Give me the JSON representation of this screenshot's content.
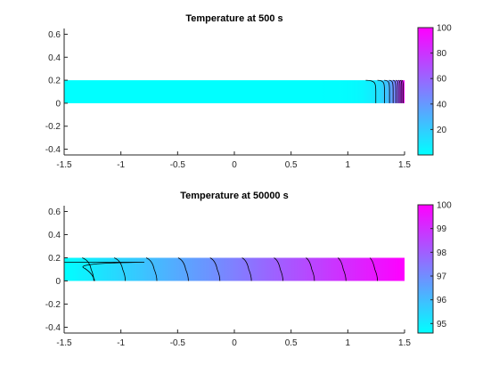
{
  "chart_data": [
    {
      "type": "heatmap",
      "title": "Temperature at 500 s",
      "xlim": [
        -1.5,
        1.5
      ],
      "ylim": [
        -0.45,
        0.65
      ],
      "x_ticks": [
        -1.5,
        -1,
        -0.5,
        0,
        0.5,
        1,
        1.5
      ],
      "x_tick_labels": [
        "-1.5",
        "-1",
        "-0.5",
        "0",
        "0.5",
        "1",
        "1.5"
      ],
      "y_ticks": [
        0.6,
        0.4,
        0.2,
        0,
        -0.2,
        -0.4
      ],
      "y_tick_labels": [
        "0.6",
        "0.4",
        "0.2",
        "0",
        "-0.2",
        "-0.4"
      ],
      "domain": {
        "x": [
          -1.5,
          1.5
        ],
        "y": [
          0,
          0.2
        ]
      },
      "colormap": {
        "low": "#00ffff",
        "high": "#ff00ff",
        "name": "cool"
      },
      "clim": [
        0,
        100
      ],
      "colorbar_ticks": [
        100,
        80,
        60,
        40,
        20
      ],
      "colorbar_tick_labels": [
        "100",
        "80",
        "60",
        "40",
        "20"
      ],
      "field": {
        "kind": "hot_end_decay",
        "base": 0,
        "max": 100,
        "length_scale": 0.11
      },
      "contour_levels": [
        10,
        20,
        30,
        40,
        50,
        60,
        70,
        80,
        90
      ],
      "grid": false,
      "legend": "colorbar-right"
    },
    {
      "type": "heatmap",
      "title": "Temperature at 50000 s",
      "xlim": [
        -1.5,
        1.5
      ],
      "ylim": [
        -0.45,
        0.65
      ],
      "x_ticks": [
        -1.5,
        -1,
        -0.5,
        0,
        0.5,
        1,
        1.5
      ],
      "x_tick_labels": [
        "-1.5",
        "-1",
        "-0.5",
        "0",
        "0.5",
        "1",
        "1.5"
      ],
      "y_ticks": [
        0.6,
        0.4,
        0.2,
        0,
        -0.2,
        -0.4
      ],
      "y_tick_labels": [
        "0.6",
        "0.4",
        "0.2",
        "0",
        "-0.2",
        "-0.4"
      ],
      "domain": {
        "x": [
          -1.5,
          1.5
        ],
        "y": [
          0,
          0.2
        ]
      },
      "colormap": {
        "low": "#00ffff",
        "high": "#ff00ff",
        "name": "cool"
      },
      "clim": [
        94.6,
        100
      ],
      "colorbar_ticks": [
        100,
        99,
        98,
        97,
        96,
        95
      ],
      "colorbar_tick_labels": [
        "100",
        "99",
        "98",
        "97",
        "96",
        "95"
      ],
      "field": {
        "kind": "linear_gradient",
        "left": 94.6,
        "right": 100
      },
      "contour_levels": [
        95,
        95.5,
        96,
        96.5,
        97,
        97.5,
        98,
        98.5,
        99,
        99.5
      ],
      "grid": false,
      "legend": "colorbar-right"
    }
  ]
}
